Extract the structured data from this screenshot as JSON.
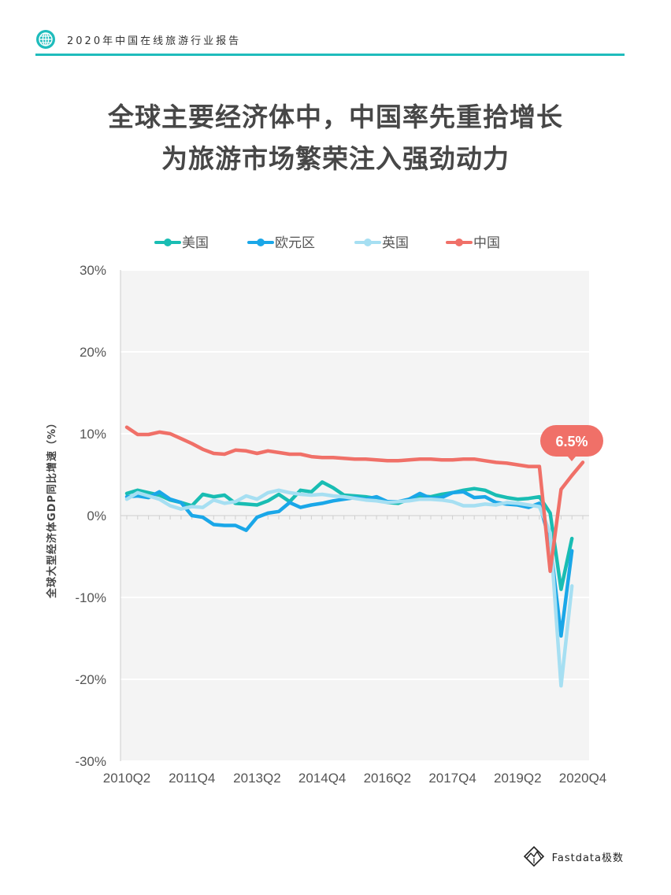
{
  "header": {
    "report_title": "2020年中国在线旅游行业报告",
    "accent": "#1fbcbc",
    "icon": "globe-icon"
  },
  "headline": {
    "line1": "全球主要经济体中，中国率先重拾增长",
    "line2": "为旅游市场繁荣注入强劲动力"
  },
  "logo": {
    "text": "Fastdata极数",
    "icon": "fastdata-logo-icon"
  },
  "chart_data": {
    "type": "line",
    "ylabel": "全球大型经济体GDP同比增速（%）",
    "ylim": [
      -30,
      30
    ],
    "y_ticks": [
      30,
      20,
      10,
      0,
      -10,
      -20,
      -30
    ],
    "y_tick_labels": [
      "30%",
      "20%",
      "10%",
      "0%",
      "-10%",
      "-20%",
      "-30%"
    ],
    "x_tick_labels": [
      {
        "label": "2010Q2",
        "index": 0
      },
      {
        "label": "2011Q4",
        "index": 6
      },
      {
        "label": "2013Q2",
        "index": 12
      },
      {
        "label": "2014Q4",
        "index": 18
      },
      {
        "label": "2016Q2",
        "index": 24
      },
      {
        "label": "2017Q4",
        "index": 30
      },
      {
        "label": "2019Q2",
        "index": 36
      },
      {
        "label": "2020Q4",
        "index": 42
      }
    ],
    "n_points": 43,
    "legend_position": "top",
    "grid": true,
    "series": [
      {
        "name": "美国",
        "color": "#19bdb3",
        "values": [
          2.7,
          3.1,
          2.8,
          2.5,
          1.9,
          1.6,
          1.2,
          2.6,
          2.3,
          2.5,
          1.5,
          1.4,
          1.3,
          1.8,
          2.6,
          1.7,
          3.1,
          2.9,
          4.1,
          3.4,
          2.5,
          2.4,
          2.3,
          2.1,
          1.6,
          1.5,
          2.0,
          2.4,
          2.3,
          2.6,
          2.8,
          3.1,
          3.3,
          3.1,
          2.5,
          2.2,
          2.0,
          2.1,
          2.3,
          0.3,
          -9.0,
          -2.8
        ]
      },
      {
        "name": "欧元区",
        "color": "#1aa7e8",
        "values": [
          2.3,
          2.4,
          2.2,
          2.9,
          2.0,
          1.6,
          0.0,
          -0.2,
          -1.1,
          -1.2,
          -1.2,
          -1.8,
          -0.2,
          0.3,
          0.5,
          1.6,
          1.0,
          1.3,
          1.5,
          1.8,
          2.0,
          2.2,
          2.0,
          2.3,
          1.7,
          1.7,
          2.0,
          2.7,
          2.1,
          2.2,
          2.8,
          2.9,
          2.2,
          2.3,
          1.6,
          1.4,
          1.3,
          1.0,
          1.5,
          -3.3,
          -14.7,
          -4.3
        ]
      },
      {
        "name": "英国",
        "color": "#a6dff2",
        "values": [
          2.0,
          2.8,
          2.4,
          2.0,
          1.2,
          0.8,
          1.1,
          1.0,
          1.9,
          1.5,
          1.7,
          2.4,
          2.0,
          2.8,
          3.1,
          2.8,
          2.6,
          2.5,
          2.6,
          2.4,
          2.3,
          2.1,
          1.9,
          1.8,
          1.6,
          1.7,
          1.8,
          2.0,
          2.0,
          1.9,
          1.7,
          1.2,
          1.2,
          1.4,
          1.3,
          1.6,
          1.5,
          1.3,
          1.1,
          -2.1,
          -20.8,
          -8.6
        ]
      },
      {
        "name": "中国",
        "color": "#f07068",
        "values": [
          10.8,
          9.9,
          9.9,
          10.2,
          10.0,
          9.4,
          8.8,
          8.1,
          7.6,
          7.5,
          8.0,
          7.9,
          7.6,
          7.9,
          7.7,
          7.5,
          7.5,
          7.2,
          7.1,
          7.1,
          7.0,
          6.9,
          6.9,
          6.8,
          6.7,
          6.7,
          6.8,
          6.9,
          6.9,
          6.8,
          6.8,
          6.9,
          6.9,
          6.7,
          6.5,
          6.4,
          6.2,
          6.0,
          6.0,
          -6.8,
          3.2,
          4.9,
          6.5
        ]
      }
    ],
    "annotation": {
      "text": "6.5%",
      "series": "中国",
      "index": 42,
      "color": "#f07068"
    }
  }
}
